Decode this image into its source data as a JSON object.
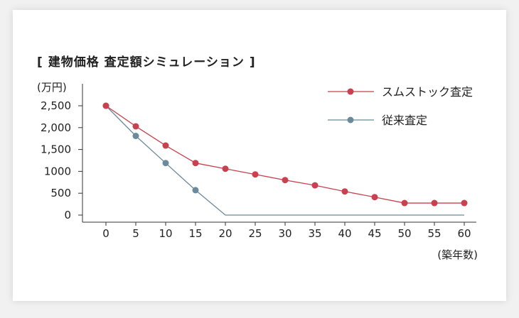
{
  "chart_data": {
    "type": "line",
    "title": "[ 建物価格 査定額シミュレーション ]",
    "y_unit_label": "(万円)",
    "x_unit_label": "(築年数)",
    "x": [
      0,
      5,
      10,
      15,
      20,
      25,
      30,
      35,
      40,
      45,
      50,
      55,
      60
    ],
    "x_tick_labels": [
      "0",
      "5",
      "10",
      "15",
      "20",
      "25",
      "30",
      "35",
      "40",
      "45",
      "50",
      "55",
      "60"
    ],
    "y_ticks": [
      0,
      500,
      1000,
      1500,
      2000,
      2500
    ],
    "y_tick_labels": [
      "0",
      "500",
      "1000",
      "1,500",
      "2,000",
      "2,500"
    ],
    "ylim": [
      0,
      2500
    ],
    "xlim": [
      0,
      60
    ],
    "grid": false,
    "legend_position": "top-right",
    "series": [
      {
        "name": "スムストック査定",
        "color": "#c9414e",
        "values": [
          2500,
          2030,
          1590,
          1190,
          1060,
          930,
          800,
          680,
          540,
          410,
          275,
          275,
          275
        ],
        "markers_at": [
          0,
          5,
          10,
          15,
          20,
          25,
          30,
          35,
          40,
          45,
          50,
          55,
          60
        ]
      },
      {
        "name": "従来査定",
        "color": "#6b8a9b",
        "values": [
          2500,
          1810,
          1190,
          570,
          0,
          0,
          0,
          0,
          0,
          0,
          0,
          0,
          0
        ],
        "markers_at": [
          0,
          5,
          10,
          15
        ]
      }
    ]
  }
}
